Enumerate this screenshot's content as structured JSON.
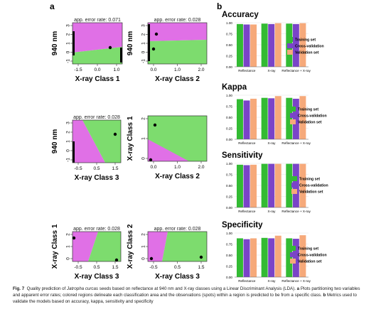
{
  "panel_a_label": "a",
  "panel_b_label": "b",
  "colors": {
    "region_green": "#7ddc6e",
    "region_magenta": "#e070e6",
    "training": "#33bb33",
    "cross_validation": "#7a44c8",
    "validation": "#f6a97a"
  },
  "lda_plots": [
    {
      "error_text": "app. error rate: 0.071",
      "xlabel": "X-ray Class 1",
      "ylabel": "940 nm",
      "xticks": [
        "-1.5",
        "0.0",
        "1.0"
      ],
      "yticks": [
        "3",
        "2",
        "1",
        "0",
        "-1"
      ]
    },
    {
      "error_text": "app. error rate: 0.028",
      "xlabel": "X-ray Class 2",
      "ylabel": "940 nm",
      "xticks": [
        "0.0",
        "1.0",
        "2.0"
      ],
      "yticks": [
        "3",
        "2",
        "1",
        "0",
        "-1"
      ]
    },
    {
      "error_text": "app. error rate: 0.028",
      "xlabel": "X-ray Class 3",
      "ylabel": "940 nm",
      "xticks": [
        "-0.5",
        "0.5",
        "1.5"
      ],
      "yticks": [
        "3",
        "2",
        "1",
        "0",
        "-1"
      ]
    },
    {
      "error_text": "",
      "xlabel": "X-ray Class 2",
      "ylabel": "X-ray Class 1",
      "xticks": [
        "0.0",
        "1.0",
        "2.0"
      ],
      "yticks": [
        "2",
        "1",
        "0"
      ]
    },
    {
      "error_text": "app. error rate: 0.028",
      "xlabel": "X-ray Class 3",
      "ylabel": "X-ray Class 1",
      "xticks": [
        "-0.5",
        "0.5",
        "1.5"
      ],
      "yticks": [
        "2",
        "1",
        "0"
      ]
    },
    {
      "error_text": "app. error rate: 0.028",
      "xlabel": "X-ray Class 3",
      "ylabel": "X-ray Class 2",
      "xticks": [
        "-0.5",
        "0.5",
        "1.5"
      ],
      "yticks": [
        "2",
        "1",
        "0"
      ]
    }
  ],
  "chart_data": [
    {
      "type": "bar",
      "title": "Accuracy",
      "categories": [
        "Reflectance",
        "X-ray",
        "Reflectance + X-ray"
      ],
      "series": [
        {
          "name": "Training set",
          "values": [
            0.97,
            0.98,
            0.98
          ]
        },
        {
          "name": "Cross-validation",
          "values": [
            0.96,
            0.97,
            0.97
          ]
        },
        {
          "name": "Validation set",
          "values": [
            0.96,
            0.99,
            0.99
          ]
        }
      ],
      "ylim": [
        0,
        1
      ],
      "yticks": [
        "0.00",
        "0.25",
        "0.50",
        "0.75",
        "1.00"
      ]
    },
    {
      "type": "bar",
      "title": "Kappa",
      "categories": [
        "Reflectance",
        "X-ray",
        "Reflectance + X-ray"
      ],
      "series": [
        {
          "name": "Training set",
          "values": [
            0.91,
            0.94,
            0.94
          ]
        },
        {
          "name": "Cross-validation",
          "values": [
            0.88,
            0.93,
            0.92
          ]
        },
        {
          "name": "Validation set",
          "values": [
            0.92,
            0.98,
            0.98
          ]
        }
      ],
      "ylim": [
        0,
        1
      ],
      "yticks": [
        "0.00",
        "0.25",
        "0.50",
        "0.75",
        "1.00"
      ]
    },
    {
      "type": "bar",
      "title": "Sensitivity",
      "categories": [
        "Reflectance",
        "X-ray",
        "Reflectance + X-ray"
      ],
      "series": [
        {
          "name": "Training set",
          "values": [
            0.97,
            0.99,
            0.99
          ]
        },
        {
          "name": "Cross-validation",
          "values": [
            0.96,
            0.99,
            0.99
          ]
        },
        {
          "name": "Validation set",
          "values": [
            0.97,
            0.99,
            0.99
          ]
        }
      ],
      "ylim": [
        0,
        1
      ],
      "yticks": [
        "0.00",
        "0.25",
        "0.50",
        "0.75",
        "1.00"
      ]
    },
    {
      "type": "bar",
      "title": "Specificity",
      "categories": [
        "Reflectance",
        "X-ray",
        "Reflectance + X-ray"
      ],
      "series": [
        {
          "name": "Training set",
          "values": [
            0.88,
            0.89,
            0.88
          ]
        },
        {
          "name": "Cross-validation",
          "values": [
            0.86,
            0.88,
            0.87
          ]
        },
        {
          "name": "Validation set",
          "values": [
            0.88,
            0.94,
            0.95
          ]
        }
      ],
      "ylim": [
        0,
        1
      ],
      "yticks": [
        "0.00",
        "0.25",
        "0.50",
        "0.75",
        "1.00"
      ]
    }
  ],
  "caption": {
    "fig_label": "Fig. 7",
    "part1": "Quality prediction of ",
    "species": "Jatropha curcas",
    "part2": " seeds based on reflectance at 940 nm and X-ray classes using a Linear Discriminant Analysis (LDA). ",
    "a_label": "a",
    "part3": " Plots partitioning two variables and apparent error rates; colored regions delineate each classification area and the observations (spots) within a region is predicted to be from a specific class. ",
    "b_label": "b",
    "part4": " Metrics used to validate the models based on accuracy, kappa, sensitivity and specificity"
  }
}
